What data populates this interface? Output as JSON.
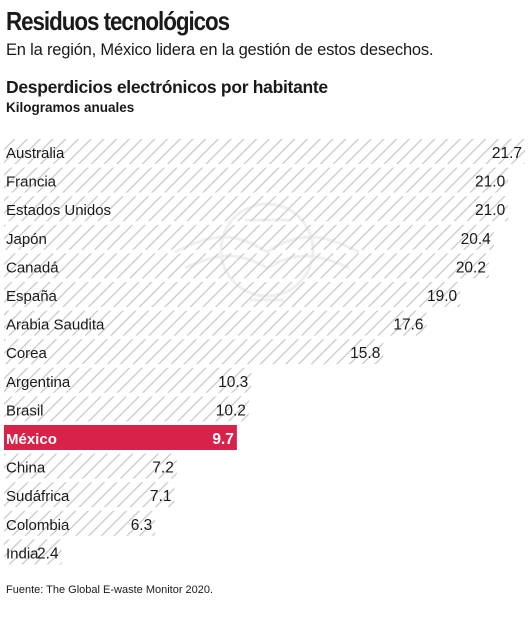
{
  "header": {
    "title": "Residuos tecnológicos",
    "subtitle": "En la región, México lidera en la gestión de estos desechos."
  },
  "chart_data": {
    "type": "bar",
    "orientation": "horizontal",
    "title": "Desperdicios electrónicos por habitante",
    "unit": "Kilogramos anuales",
    "categories": [
      "Australia",
      "Francia",
      "Estados Unidos",
      "Japón",
      "Canadá",
      "España",
      "Arabia Saudita",
      "Corea",
      "Argentina",
      "Brasil",
      "México",
      "China",
      "Sudáfrica",
      "Colombia",
      "India"
    ],
    "values": [
      21.7,
      21.0,
      21.0,
      20.4,
      20.2,
      19.0,
      17.6,
      15.8,
      10.3,
      10.2,
      9.7,
      7.2,
      7.1,
      6.3,
      2.4
    ],
    "value_labels": [
      "21.7",
      "21.0",
      "21.0",
      "20.4",
      "20.2",
      "19.0",
      "17.6",
      "15.8",
      "10.3",
      "10.2",
      "9.7",
      "7.2",
      "7.1",
      "6.3",
      "2.4"
    ],
    "highlight": "México",
    "xlim": [
      0,
      21.7
    ],
    "grid": false,
    "legend": "none"
  },
  "colors": {
    "highlight": "#d8224a",
    "hatch": "#c9c9c9",
    "text": "#1a1a1a",
    "highlight_text": "#ffffff"
  },
  "source": "Fuente: The Global E-waste Monitor 2020."
}
